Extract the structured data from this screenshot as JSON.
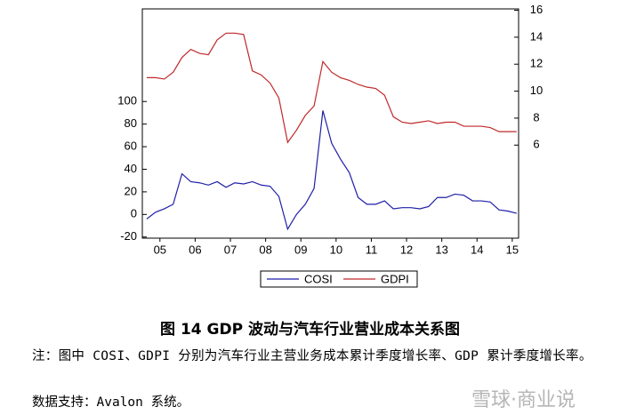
{
  "chart_data": {
    "type": "line",
    "x": [
      2005.125,
      2005.375,
      2005.625,
      2005.875,
      2006.125,
      2006.375,
      2006.625,
      2006.875,
      2007.125,
      2007.375,
      2007.625,
      2007.875,
      2008.125,
      2008.375,
      2008.625,
      2008.875,
      2009.125,
      2009.375,
      2009.625,
      2009.875,
      2010.125,
      2010.375,
      2010.625,
      2010.875,
      2011.125,
      2011.375,
      2011.625,
      2011.875,
      2012.125,
      2012.375,
      2012.625,
      2012.875,
      2013.125,
      2013.375,
      2013.625,
      2013.875,
      2014.125,
      2014.375,
      2014.625,
      2014.875,
      2015.125,
      2015.375,
      2015.625
    ],
    "series": [
      {
        "name": "COSI",
        "color": "#1f1fa8",
        "values": [
          -4,
          2,
          5,
          9,
          36,
          29,
          28,
          26,
          29,
          24,
          28,
          27,
          29,
          26,
          25,
          16,
          -13,
          0,
          9,
          23,
          92,
          63,
          49,
          37,
          15,
          9,
          9,
          12,
          5,
          6,
          6,
          5,
          7,
          15,
          15,
          18,
          17,
          12,
          12,
          11,
          4,
          3,
          1
        ]
      },
      {
        "name": "GDPI",
        "color": "#c0282b",
        "axis": "y2",
        "values": [
          11.0,
          11.0,
          10.9,
          11.4,
          12.5,
          13.1,
          12.8,
          12.7,
          13.8,
          14.3,
          14.3,
          14.2,
          11.5,
          11.2,
          10.6,
          9.5,
          6.2,
          7.1,
          8.2,
          8.9,
          12.2,
          11.4,
          11.0,
          10.8,
          10.5,
          10.3,
          10.2,
          9.7,
          8.1,
          7.7,
          7.6,
          7.7,
          7.8,
          7.6,
          7.7,
          7.7,
          7.4,
          7.4,
          7.4,
          7.3,
          7.0,
          7.0,
          7.0
        ]
      }
    ],
    "xlim": [
      2005,
      2015.68
    ],
    "xticks": [
      {
        "value": 2005.5,
        "label": "05"
      },
      {
        "value": 2006.5,
        "label": "06"
      },
      {
        "value": 2007.5,
        "label": "07"
      },
      {
        "value": 2008.5,
        "label": "08"
      },
      {
        "value": 2009.5,
        "label": "09"
      },
      {
        "value": 2010.5,
        "label": "10"
      },
      {
        "value": 2011.5,
        "label": "11"
      },
      {
        "value": 2012.5,
        "label": "12"
      },
      {
        "value": 2013.5,
        "label": "13"
      },
      {
        "value": 2014.5,
        "label": "14"
      },
      {
        "value": 2015.5,
        "label": "15"
      }
    ],
    "ylim": [
      -21,
      182
    ],
    "yticks": [
      -20,
      0,
      20,
      40,
      60,
      80,
      100
    ],
    "y2lim": [
      -0.9,
      16.1
    ],
    "y2ticks": [
      6,
      8,
      10,
      12,
      14,
      16
    ]
  },
  "caption": "图 14 GDP 波动与汽车行业营业成本关系图",
  "note": "注：图中 COSI、GDPI 分别为汽车行业主营业务成本累计季度增长率、GDP 累计季度增长率。",
  "source": "数据支持：Avalon 系统。",
  "watermark": "雪球·商业说"
}
